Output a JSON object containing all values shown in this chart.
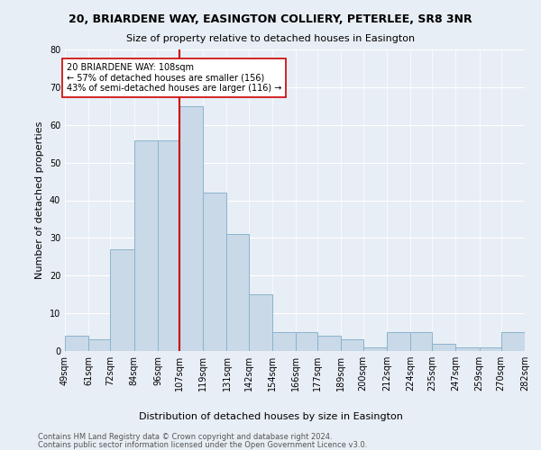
{
  "title": "20, BRIARDENE WAY, EASINGTON COLLIERY, PETERLEE, SR8 3NR",
  "subtitle": "Size of property relative to detached houses in Easington",
  "xlabel": "Distribution of detached houses by size in Easington",
  "ylabel": "Number of detached properties",
  "bin_labels": [
    "49sqm",
    "61sqm",
    "72sqm",
    "84sqm",
    "96sqm",
    "107sqm",
    "119sqm",
    "131sqm",
    "142sqm",
    "154sqm",
    "166sqm",
    "177sqm",
    "189sqm",
    "200sqm",
    "212sqm",
    "224sqm",
    "235sqm",
    "247sqm",
    "259sqm",
    "270sqm",
    "282sqm"
  ],
  "bin_edges": [
    49,
    61,
    72,
    84,
    96,
    107,
    119,
    131,
    142,
    154,
    166,
    177,
    189,
    200,
    212,
    224,
    235,
    247,
    259,
    270,
    282
  ],
  "heights": [
    4,
    3,
    27,
    56,
    56,
    65,
    42,
    31,
    15,
    5,
    5,
    4,
    3,
    1,
    5,
    5,
    2,
    1,
    1,
    5
  ],
  "bar_color": "#c9d9e8",
  "bar_edge_color": "#8ab4cc",
  "property_line_x": 107,
  "property_line_color": "#cc0000",
  "annotation_line1": "20 BRIARDENE WAY: 108sqm",
  "annotation_line2": "← 57% of detached houses are smaller (156)",
  "annotation_line3": "43% of semi-detached houses are larger (116) →",
  "annotation_box_color": "#ffffff",
  "annotation_box_edge": "#cc0000",
  "footnote1": "Contains HM Land Registry data © Crown copyright and database right 2024.",
  "footnote2": "Contains public sector information licensed under the Open Government Licence v3.0.",
  "ylim": [
    0,
    80
  ],
  "yticks": [
    0,
    10,
    20,
    30,
    40,
    50,
    60,
    70,
    80
  ],
  "bg_color": "#e8eef5",
  "plot_bg_color": "#e8eef5",
  "grid_color": "#ffffff",
  "title_fontsize": 9,
  "subtitle_fontsize": 8,
  "ylabel_fontsize": 8,
  "xlabel_fontsize": 8,
  "tick_fontsize": 7,
  "footnote_fontsize": 6
}
